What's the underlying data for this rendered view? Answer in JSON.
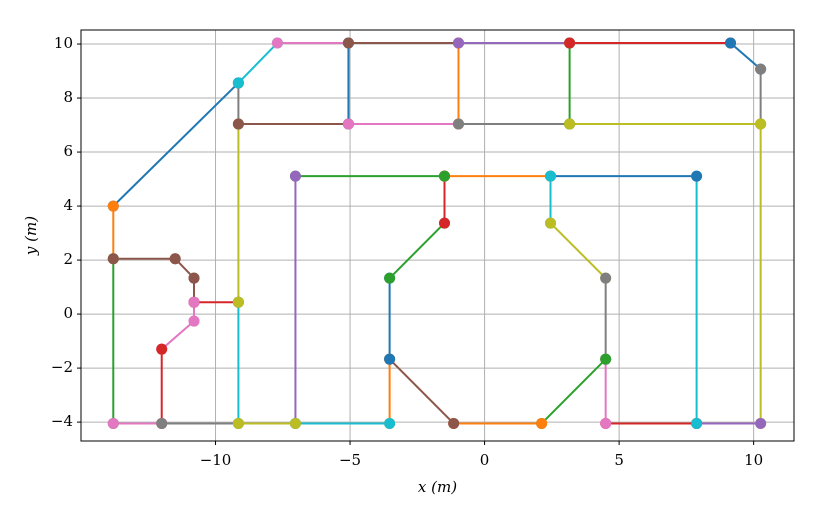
{
  "chart_data": {
    "type": "line",
    "xlabel": "x (m)",
    "ylabel": "y (m)",
    "xlim": [
      -15.0,
      11.5
    ],
    "ylim": [
      -4.7,
      10.52
    ],
    "xticks": [
      {
        "value": -10,
        "label": "−10"
      },
      {
        "value": -5,
        "label": "−5"
      },
      0,
      5,
      10
    ],
    "yticks": [
      {
        "value": -4,
        "label": "−4"
      },
      {
        "value": -2,
        "label": "−2"
      },
      0,
      2,
      4,
      6,
      8,
      10
    ],
    "grid": true,
    "segments": [
      {
        "color": "#1f77b4",
        "x": [
          -13.8,
          -9.15
        ],
        "y": [
          4.0,
          8.56
        ]
      },
      {
        "color": "#ff7f0e",
        "x": [
          -13.8,
          -13.8
        ],
        "y": [
          4.0,
          2.05
        ]
      },
      {
        "color": "#2ca02c",
        "x": [
          -13.8,
          -13.8
        ],
        "y": [
          2.05,
          -4.05
        ]
      },
      {
        "color": "#8c564b",
        "x": [
          -13.8,
          -11.5
        ],
        "y": [
          2.05,
          2.05
        ]
      },
      {
        "color": "#8c564b",
        "x": [
          -11.5,
          -10.8
        ],
        "y": [
          2.05,
          1.33
        ]
      },
      {
        "color": "#8c564b",
        "x": [
          -10.8,
          -10.8
        ],
        "y": [
          1.33,
          0.44
        ]
      },
      {
        "color": "#d62728",
        "x": [
          -10.8,
          -9.15
        ],
        "y": [
          0.44,
          0.44
        ]
      },
      {
        "color": "#e377c2",
        "x": [
          -10.8,
          -10.8
        ],
        "y": [
          -0.26,
          0.44
        ]
      },
      {
        "color": "#e377c2",
        "x": [
          -12.0,
          -10.8
        ],
        "y": [
          -1.3,
          -0.26
        ]
      },
      {
        "color": "#d62728",
        "x": [
          -12.0,
          -12.0
        ],
        "y": [
          -4.05,
          -1.3
        ]
      },
      {
        "color": "#e377c2",
        "x": [
          -12.0,
          -13.8
        ],
        "y": [
          -4.05,
          -4.05
        ]
      },
      {
        "color": "#7f7f7f",
        "x": [
          -9.15,
          -12.0
        ],
        "y": [
          -4.05,
          -4.05
        ]
      },
      {
        "color": "#17becf",
        "x": [
          -9.15,
          -9.15
        ],
        "y": [
          -4.05,
          0.44
        ]
      },
      {
        "color": "#bcbd22",
        "x": [
          -9.15,
          -9.15
        ],
        "y": [
          0.44,
          7.04
        ]
      },
      {
        "color": "#7f7f7f",
        "x": [
          -9.15,
          -9.15
        ],
        "y": [
          7.04,
          8.56
        ]
      },
      {
        "color": "#17becf",
        "x": [
          -9.15,
          -7.7
        ],
        "y": [
          8.56,
          10.04
        ]
      },
      {
        "color": "#e377c2",
        "x": [
          -7.7,
          -5.06
        ],
        "y": [
          10.04,
          10.04
        ]
      },
      {
        "color": "#1f77b4",
        "x": [
          -5.06,
          -5.06
        ],
        "y": [
          10.04,
          7.04
        ]
      },
      {
        "color": "#8c564b",
        "x": [
          -5.06,
          -0.97
        ],
        "y": [
          10.04,
          10.04
        ]
      },
      {
        "color": "#8c564b",
        "x": [
          -9.15,
          -5.06
        ],
        "y": [
          7.04,
          7.04
        ]
      },
      {
        "color": "#e377c2",
        "x": [
          -5.06,
          -0.97
        ],
        "y": [
          7.04,
          7.04
        ]
      },
      {
        "color": "#ff7f0e",
        "x": [
          -0.97,
          -0.97
        ],
        "y": [
          10.04,
          7.04
        ]
      },
      {
        "color": "#7f7f7f",
        "x": [
          -0.97,
          3.16
        ],
        "y": [
          7.04,
          7.04
        ]
      },
      {
        "color": "#9467bd",
        "x": [
          -0.97,
          3.16
        ],
        "y": [
          10.04,
          10.04
        ]
      },
      {
        "color": "#2ca02c",
        "x": [
          3.16,
          3.16
        ],
        "y": [
          10.04,
          7.04
        ]
      },
      {
        "color": "#d62728",
        "x": [
          3.16,
          9.14
        ],
        "y": [
          10.04,
          10.04
        ]
      },
      {
        "color": "#1f77b4",
        "x": [
          9.14,
          10.26
        ],
        "y": [
          10.04,
          9.07
        ]
      },
      {
        "color": "#7f7f7f",
        "x": [
          10.26,
          10.26
        ],
        "y": [
          9.07,
          7.04
        ]
      },
      {
        "color": "#bcbd22",
        "x": [
          3.16,
          10.26
        ],
        "y": [
          7.04,
          7.04
        ]
      },
      {
        "color": "#bcbd22",
        "x": [
          10.26,
          10.26
        ],
        "y": [
          7.04,
          -4.05
        ]
      },
      {
        "color": "#9467bd",
        "x": [
          10.26,
          7.88
        ],
        "y": [
          -4.05,
          -4.05
        ]
      },
      {
        "color": "#d62728",
        "x": [
          7.88,
          4.5
        ],
        "y": [
          -4.05,
          -4.05
        ]
      },
      {
        "color": "#17becf",
        "x": [
          7.88,
          7.88
        ],
        "y": [
          -4.05,
          5.11
        ]
      },
      {
        "color": "#1f77b4",
        "x": [
          7.88,
          2.45
        ],
        "y": [
          5.11,
          5.11
        ]
      },
      {
        "color": "#ff7f0e",
        "x": [
          2.45,
          -1.49
        ],
        "y": [
          5.11,
          5.11
        ]
      },
      {
        "color": "#17becf",
        "x": [
          2.45,
          2.45
        ],
        "y": [
          5.11,
          3.37
        ]
      },
      {
        "color": "#bcbd22",
        "x": [
          2.45,
          4.5
        ],
        "y": [
          3.37,
          1.33
        ]
      },
      {
        "color": "#7f7f7f",
        "x": [
          4.5,
          4.5
        ],
        "y": [
          1.33,
          -1.67
        ]
      },
      {
        "color": "#e377c2",
        "x": [
          4.5,
          4.5
        ],
        "y": [
          -1.67,
          -4.05
        ]
      },
      {
        "color": "#2ca02c",
        "x": [
          4.5,
          2.12
        ],
        "y": [
          -1.67,
          -4.05
        ]
      },
      {
        "color": "#ff7f0e",
        "x": [
          2.12,
          -1.15
        ],
        "y": [
          -4.05,
          -4.05
        ]
      },
      {
        "color": "#8c564b",
        "x": [
          -1.15,
          -3.53
        ],
        "y": [
          -4.05,
          -1.67
        ]
      },
      {
        "color": "#ff7f0e",
        "x": [
          -3.53,
          -3.53
        ],
        "y": [
          -1.67,
          -4.05
        ]
      },
      {
        "color": "#1f77b4",
        "x": [
          -3.53,
          -3.53
        ],
        "y": [
          -1.67,
          1.33
        ]
      },
      {
        "color": "#2ca02c",
        "x": [
          -3.53,
          -1.49
        ],
        "y": [
          1.33,
          3.37
        ]
      },
      {
        "color": "#d62728",
        "x": [
          -1.49,
          -1.49
        ],
        "y": [
          3.37,
          5.11
        ]
      },
      {
        "color": "#2ca02c",
        "x": [
          -1.49,
          -7.03
        ],
        "y": [
          5.11,
          5.11
        ]
      },
      {
        "color": "#9467bd",
        "x": [
          -7.03,
          -7.03
        ],
        "y": [
          5.11,
          -4.05
        ]
      },
      {
        "color": "#17becf",
        "x": [
          -7.03,
          -3.53
        ],
        "y": [
          -4.05,
          -4.05
        ]
      },
      {
        "color": "#bcbd22",
        "x": [
          -9.15,
          -7.03
        ],
        "y": [
          -4.05,
          -4.05
        ]
      }
    ]
  }
}
